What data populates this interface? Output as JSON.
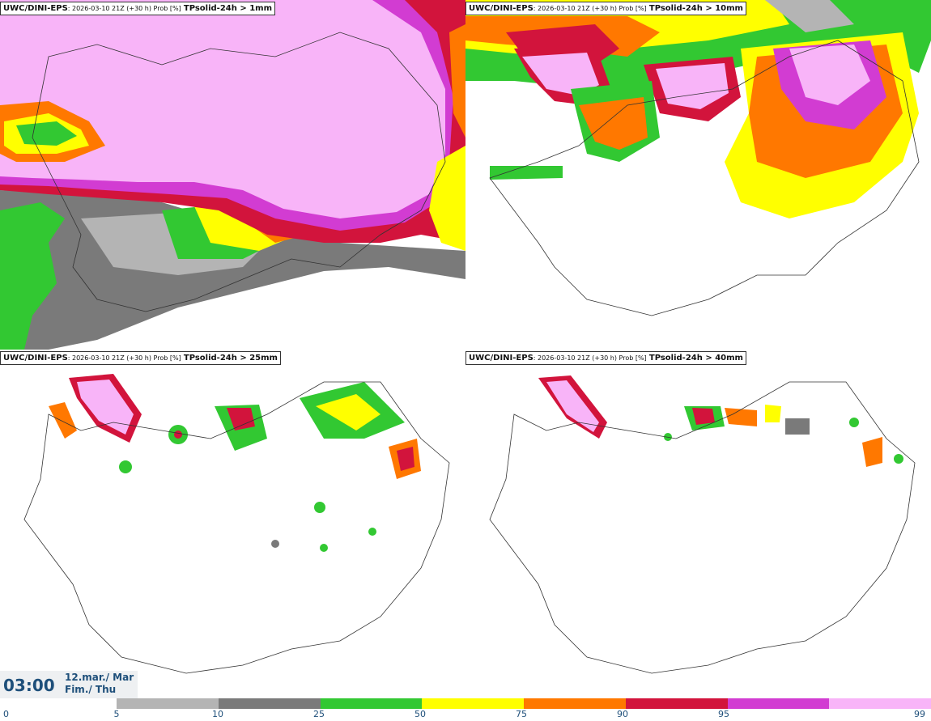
{
  "panels": [
    {
      "source": "UWC/DINI-EPS",
      "meta": ": 2026-03-10 21Z (+30 h) Prob [%]",
      "variable": "TPsolid-24h > 1mm"
    },
    {
      "source": "UWC/DINI-EPS",
      "meta": ": 2026-03-10 21Z (+30 h) Prob [%]",
      "variable": "TPsolid-24h > 10mm"
    },
    {
      "source": "UWC/DINI-EPS",
      "meta": ": 2026-03-10 21Z (+30 h) Prob [%]",
      "variable": "TPsolid-24h > 25mm"
    },
    {
      "source": "UWC/DINI-EPS",
      "meta": ": 2026-03-10 21Z (+30 h) Prob [%]",
      "variable": "TPsolid-24h > 40mm"
    }
  ],
  "valid_time": {
    "time": "03:00",
    "date_line1": "12.mar./ Mar",
    "date_line2": "Fim./ Thu"
  },
  "colorbar": {
    "ticks": [
      "0",
      "5",
      "10",
      "25",
      "50",
      "75",
      "90",
      "95",
      "99"
    ],
    "colors": [
      "#b4b4b4",
      "#7a7a7a",
      "#32c832",
      "#ffff00",
      "#ff7800",
      "#d2143c",
      "#d23cd2",
      "#f8b4f8"
    ]
  }
}
